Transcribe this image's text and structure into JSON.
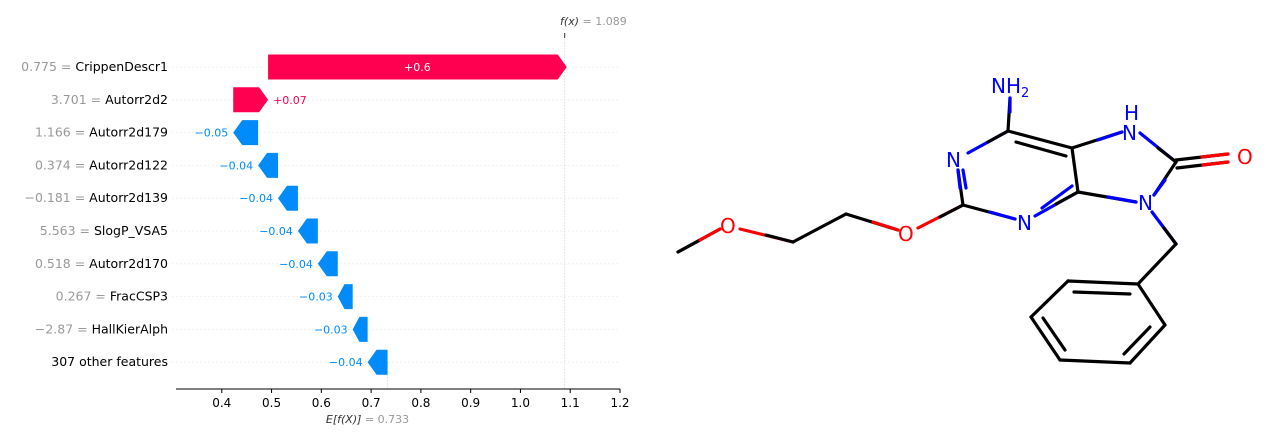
{
  "chart_data": {
    "type": "waterfall",
    "fx_label": "f(x)",
    "fx_value": "1.089",
    "base_label": "E[f(X)]",
    "base_value": "0.733",
    "xlim": [
      0.3,
      1.2
    ],
    "xticks": [
      "0.4",
      "0.5",
      "0.6",
      "0.7",
      "0.8",
      "0.9",
      "1.0",
      "1.1",
      "1.2"
    ],
    "colors": {
      "positive": "#ff0051",
      "negative": "#008bfb",
      "feature_value": "#999999"
    },
    "features": [
      {
        "name": "CrippenDescr1",
        "value": "0.775",
        "contribution": 0.6,
        "label": "+0.6"
      },
      {
        "name": "Autorr2d2",
        "value": "3.701",
        "contribution": 0.07,
        "label": "+0.07"
      },
      {
        "name": "Autorr2d179",
        "value": "1.166",
        "contribution": -0.05,
        "label": "−0.05"
      },
      {
        "name": "Autorr2d122",
        "value": "0.374",
        "contribution": -0.04,
        "label": "−0.04"
      },
      {
        "name": "Autorr2d139",
        "value": "−0.181",
        "contribution": -0.04,
        "label": "−0.04"
      },
      {
        "name": "SlogP_VSA5",
        "value": "5.563",
        "contribution": -0.04,
        "label": "−0.04"
      },
      {
        "name": "Autorr2d170",
        "value": "0.518",
        "contribution": -0.04,
        "label": "−0.04"
      },
      {
        "name": "FracCSP3",
        "value": "0.267",
        "contribution": -0.03,
        "label": "−0.03"
      },
      {
        "name": "HallKierAlph",
        "value": "−2.87",
        "contribution": -0.03,
        "label": "−0.03"
      },
      {
        "name": "307 other features",
        "value": "",
        "contribution": -0.04,
        "label": "−0.04"
      }
    ]
  },
  "molecule": {
    "atom_labels": {
      "nh2": "NH",
      "nh2_sub": "2",
      "nh": "H",
      "n": "N",
      "o": "O"
    },
    "colors": {
      "bond": "#000000",
      "nitrogen": "#0000ff",
      "oxygen": "#ff0000"
    }
  }
}
